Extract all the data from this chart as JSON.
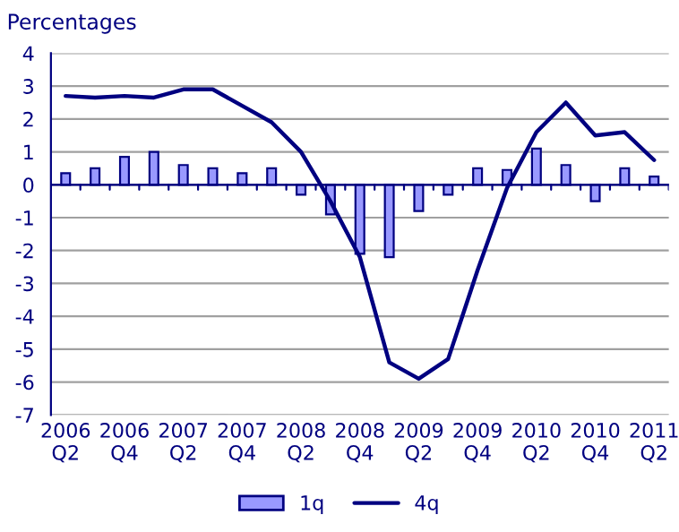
{
  "chart_data": {
    "type": "bar",
    "ylabel": "Percentages",
    "categories": [
      "2006\nQ2",
      null,
      "2006\nQ4",
      null,
      "2007\nQ2",
      null,
      "2007\nQ4",
      null,
      "2008\nQ2",
      null,
      "2008\nQ4",
      null,
      "2009\nQ2",
      null,
      "2009\nQ4",
      null,
      "2010\nQ2",
      null,
      "2010\nQ4",
      null,
      "2011\nQ2"
    ],
    "series": [
      {
        "name": "1q",
        "color": "#9999ff",
        "values": [
          0.35,
          0.5,
          0.85,
          1.0,
          0.6,
          0.5,
          0.35,
          0.5,
          -0.3,
          -0.9,
          -2.1,
          -2.2,
          -0.8,
          -0.3,
          0.5,
          0.45,
          1.1,
          0.6,
          -0.5,
          0.5,
          0.25
        ]
      },
      {
        "name": "4q",
        "type": "line",
        "color": "#000080",
        "values": [
          2.7,
          2.65,
          2.7,
          2.65,
          2.9,
          2.9,
          2.4,
          1.9,
          1.0,
          -0.5,
          -2.2,
          -5.4,
          -5.9,
          -5.3,
          -2.6,
          -0.1,
          1.6,
          2.5,
          1.5,
          1.6,
          0.75
        ]
      }
    ],
    "ylim": [
      -7,
      4
    ],
    "yticks": [
      -7,
      -6,
      -5,
      -4,
      -3,
      -2,
      -1,
      0,
      1,
      2,
      3,
      4
    ],
    "ref_lines": [
      {
        "axis": "y",
        "value": 0,
        "color": "#000080"
      }
    ],
    "grid": "y",
    "legend": "bottom",
    "marker": "none",
    "line_style": "solid"
  }
}
